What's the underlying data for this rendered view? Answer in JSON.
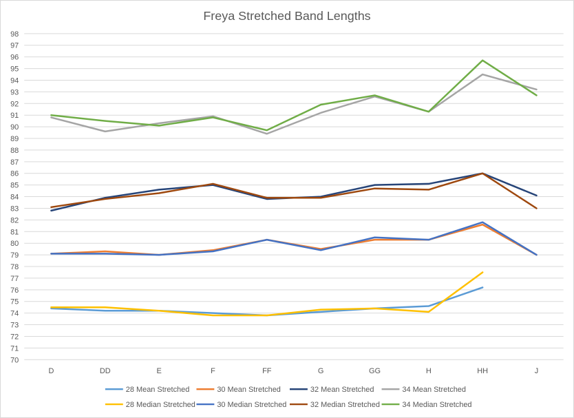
{
  "chart_data": {
    "type": "line",
    "title": "Freya Stretched Band Lengths",
    "xlabel": "",
    "ylabel": "",
    "categories": [
      "D",
      "DD",
      "E",
      "F",
      "FF",
      "G",
      "GG",
      "H",
      "HH",
      "J"
    ],
    "ylim": [
      70,
      98
    ],
    "yticks": [
      "70",
      "71",
      "72",
      "73",
      "74",
      "75",
      "76",
      "77",
      "78",
      "79",
      "80",
      "81",
      "82",
      "83",
      "84",
      "85",
      "86",
      "87",
      "88",
      "89",
      "90",
      "91",
      "92",
      "93",
      "94",
      "95",
      "96",
      "97",
      "98"
    ],
    "grid": true,
    "legend_position": "bottom",
    "series": [
      {
        "name": "28 Mean Stretched",
        "color": "#5B9BD5",
        "values": [
          74.4,
          74.2,
          74.2,
          74.0,
          73.8,
          74.1,
          74.4,
          74.6,
          76.2,
          null
        ]
      },
      {
        "name": "30 Mean Stretched",
        "color": "#ED7D31",
        "values": [
          79.1,
          79.3,
          79.0,
          79.4,
          80.3,
          79.5,
          80.3,
          80.3,
          81.6,
          79.0
        ]
      },
      {
        "name": "32 Mean Stretched",
        "color": "#264478",
        "values": [
          82.8,
          83.9,
          84.6,
          85.0,
          83.8,
          84.0,
          85.0,
          85.1,
          86.0,
          84.1
        ]
      },
      {
        "name": "34 Mean Stretched",
        "color": "#A5A5A5",
        "values": [
          90.8,
          89.6,
          90.3,
          90.9,
          89.4,
          91.2,
          92.6,
          91.3,
          94.5,
          93.2
        ]
      },
      {
        "name": "28 Median Stretched",
        "color": "#FFC000",
        "values": [
          74.5,
          74.5,
          74.2,
          73.8,
          73.8,
          74.3,
          74.4,
          74.1,
          77.5,
          null
        ]
      },
      {
        "name": "30 Median Stretched",
        "color": "#4472C4",
        "values": [
          79.1,
          79.1,
          79.0,
          79.3,
          80.3,
          79.4,
          80.5,
          80.3,
          81.8,
          79.0
        ]
      },
      {
        "name": "32 Median Stretched",
        "color": "#9E480E",
        "values": [
          83.1,
          83.8,
          84.3,
          85.1,
          83.9,
          83.9,
          84.7,
          84.6,
          86.0,
          83.0
        ]
      },
      {
        "name": "34 Median Stretched",
        "color": "#70AD47",
        "values": [
          91.0,
          90.5,
          90.1,
          90.8,
          89.7,
          91.9,
          92.7,
          91.3,
          95.7,
          92.7
        ]
      }
    ]
  }
}
